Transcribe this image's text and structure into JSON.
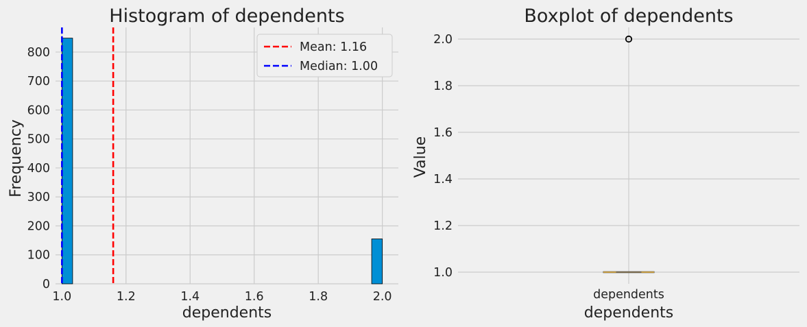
{
  "chart_data": [
    {
      "type": "bar",
      "title": "Histogram of dependents",
      "xlabel": "dependents",
      "ylabel": "Frequency",
      "xlim": [
        0.98,
        2.05
      ],
      "ylim": [
        0,
        885
      ],
      "xticks": [
        "1.0",
        "1.2",
        "1.4",
        "1.6",
        "1.8",
        "2.0"
      ],
      "yticks": [
        "0",
        "100",
        "200",
        "300",
        "400",
        "500",
        "600",
        "700",
        "800"
      ],
      "bins": [
        {
          "x_start": 1.0,
          "x_end": 1.0333,
          "value": 848
        },
        {
          "x_start": 1.9667,
          "x_end": 2.0,
          "value": 155
        }
      ],
      "bar_color": "#008fd5",
      "mean": 1.16,
      "median": 1.0,
      "mean_color": "#ff0000",
      "median_color": "#0000ff",
      "legend": [
        "Mean: 1.16",
        "Median: 1.00"
      ],
      "legend_position": "top-right",
      "grid": true
    },
    {
      "type": "boxplot",
      "title": "Boxplot of dependents",
      "xlabel": "dependents",
      "ylabel": "Value",
      "categories": [
        "dependents"
      ],
      "ylim": [
        0.95,
        2.05
      ],
      "yticks": [
        "1.0",
        "1.2",
        "1.4",
        "1.6",
        "1.8",
        "2.0"
      ],
      "box": {
        "q1": 1.0,
        "median": 1.0,
        "q3": 1.0,
        "whisker_low": 1.0,
        "whisker_high": 1.0
      },
      "outliers": [
        2.0
      ],
      "grid": true
    }
  ]
}
